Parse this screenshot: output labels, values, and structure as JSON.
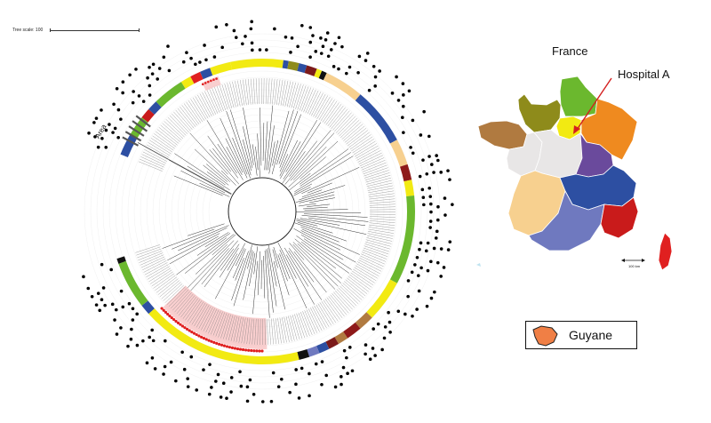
{
  "tree_scale_label": "Tree scale: 100",
  "area_label": "Area",
  "map": {
    "title": "France",
    "hospital_label": "Hospital A",
    "scale_label": "100 km",
    "guyane_label": "Guyane",
    "colors": {
      "hauts_de_france": "#6bb82e",
      "normandie": "#8e8b1b",
      "bretagne": "#b07a40",
      "ile_de_france": "#f2ea12",
      "grand_est": "#ef8a1f",
      "centre": "#e8e6e6",
      "bourgogne": "#6a4a9c",
      "nouvelle_aquitaine": "#f7d08f",
      "auvergne_rhone_alpes": "#2d4fa2",
      "occitanie": "#6f79bf",
      "paca": "#c91b1b",
      "corse": "#e02020",
      "guyane": "#f07f45",
      "arrow": "#d42020"
    }
  },
  "tree": {
    "highlight_color": "#f4a7a7",
    "dot_color": "#e02020",
    "outer_dot_color": "#000000"
  }
}
